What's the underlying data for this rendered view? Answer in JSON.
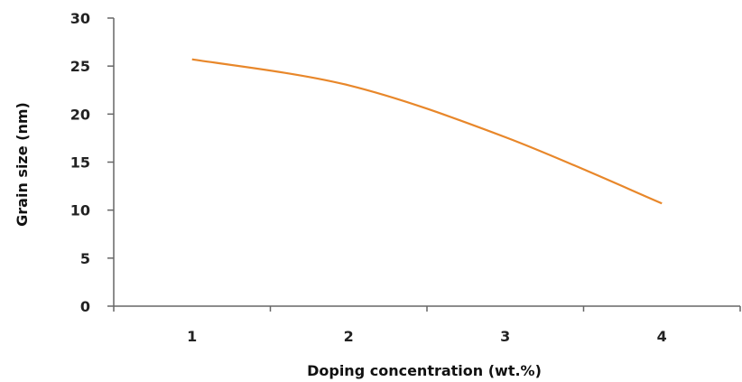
{
  "chart_data": {
    "type": "line",
    "title": "",
    "xlabel": "Doping concentration (wt.%)",
    "ylabel": "Grain size (nm)",
    "categories": [
      "1",
      "2",
      "3",
      "4"
    ],
    "x": [
      1,
      2,
      3,
      4
    ],
    "xlim": [
      0.5,
      4.5
    ],
    "ylim": [
      0,
      30
    ],
    "yticks": [
      0,
      5,
      10,
      15,
      20,
      25,
      30
    ],
    "grid": false,
    "legend": "none",
    "series": [
      {
        "values": [
          25.7,
          23.0,
          17.6,
          10.7
        ],
        "color": "#E8872A"
      }
    ]
  }
}
